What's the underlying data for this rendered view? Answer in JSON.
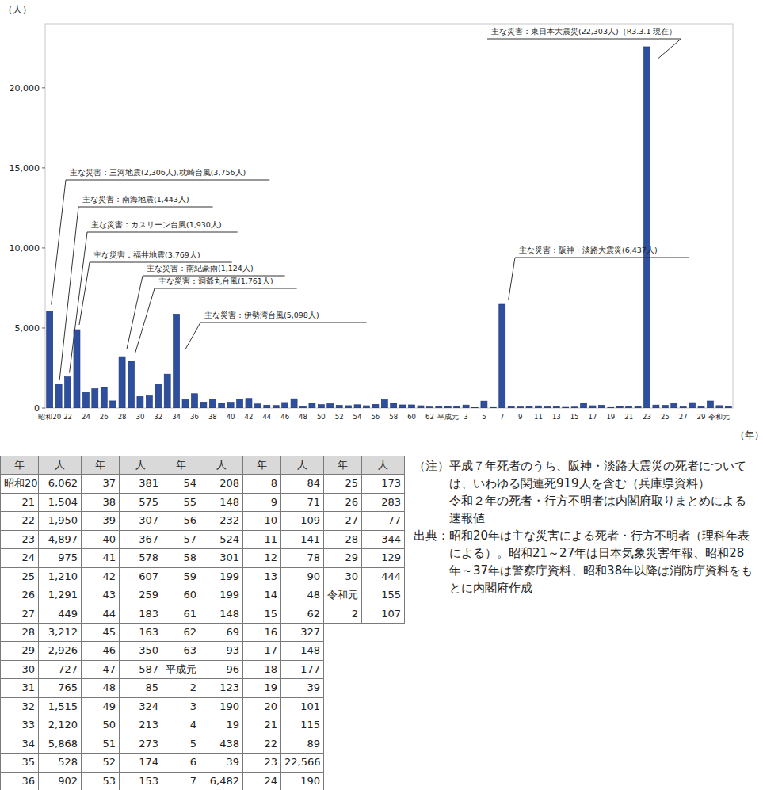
{
  "chart_data": {
    "type": "bar",
    "ylabel": "（人）",
    "xlabel": "（年）",
    "categories": [
      "昭和20",
      null,
      "22",
      null,
      "24",
      null,
      "26",
      null,
      "28",
      null,
      "30",
      null,
      "32",
      null,
      "34",
      null,
      "36",
      null,
      "38",
      null,
      "40",
      null,
      "42",
      null,
      "44",
      null,
      "46",
      null,
      "48",
      null,
      "50",
      null,
      "52",
      null,
      "54",
      null,
      "56",
      null,
      "58",
      null,
      "60",
      null,
      "62",
      null,
      "平成元",
      null,
      "3",
      null,
      "5",
      null,
      "7",
      null,
      "9",
      null,
      "11",
      null,
      "13",
      null,
      "15",
      null,
      "17",
      null,
      "19",
      null,
      "21",
      null,
      "23",
      null,
      "25",
      null,
      "27",
      null,
      "29",
      null,
      "令和元",
      null
    ],
    "values": [
      6062,
      1504,
      1950,
      4897,
      975,
      1210,
      1291,
      449,
      3212,
      2926,
      727,
      765,
      1515,
      2120,
      5868,
      528,
      902,
      381,
      575,
      307,
      367,
      578,
      607,
      259,
      183,
      163,
      350,
      587,
      85,
      324,
      213,
      273,
      174,
      153,
      208,
      148,
      232,
      524,
      301,
      199,
      199,
      148,
      69,
      93,
      96,
      123,
      190,
      19,
      438,
      39,
      6482,
      84,
      71,
      109,
      141,
      78,
      90,
      48,
      62,
      327,
      148,
      177,
      39,
      101,
      115,
      89,
      22566,
      190,
      173,
      283,
      77,
      344,
      129,
      444,
      155,
      107
    ],
    "color": "#2e4f9e",
    "ylim": [
      0,
      24000
    ],
    "yticks": [
      0,
      {
        "value": 5000,
        "label": "5,000"
      },
      {
        "value": 10000,
        "label": "10,000"
      },
      {
        "value": 15000,
        "label": "15,000"
      },
      {
        "value": 20000,
        "label": "20,000"
      }
    ],
    "grid": false,
    "annotations": [
      {
        "text": "主な災害：三河地震(2,306人),枕崎台風(3,756人)",
        "index": 0
      },
      {
        "text": "主な災害：南海地震(1,443人)",
        "index": 1
      },
      {
        "text": "主な災害：カスリーン台風(1,930人)",
        "index": 2
      },
      {
        "text": "主な災害：福井地震(3,769人)",
        "index": 3
      },
      {
        "text": "主な災害：南紀豪雨(1,124人)",
        "index": 8
      },
      {
        "text": "主な災害：洞爺丸台風(1,761人)",
        "index": 9
      },
      {
        "text": "主な災害：伊勢湾台風(5,098人)",
        "index": 14
      },
      {
        "text": "主な災害：阪神・淡路大震災(6,437人)",
        "index": 50
      },
      {
        "text": "主な災害：東日本大震災(22,303人)（R3.3.1 現在）",
        "index": 66
      }
    ]
  },
  "table": {
    "header": [
      "年",
      "人",
      "年",
      "人",
      "年",
      "人",
      "年",
      "人",
      "年",
      "人"
    ],
    "rows": [
      [
        "昭和20",
        "6,062",
        "37",
        "381",
        "54",
        "208",
        "8",
        "84",
        "25",
        "173"
      ],
      [
        "21",
        "1,504",
        "38",
        "575",
        "55",
        "148",
        "9",
        "71",
        "26",
        "283"
      ],
      [
        "22",
        "1,950",
        "39",
        "307",
        "56",
        "232",
        "10",
        "109",
        "27",
        "77"
      ],
      [
        "23",
        "4,897",
        "40",
        "367",
        "57",
        "524",
        "11",
        "141",
        "28",
        "344"
      ],
      [
        "24",
        "975",
        "41",
        "578",
        "58",
        "301",
        "12",
        "78",
        "29",
        "129"
      ],
      [
        "25",
        "1,210",
        "42",
        "607",
        "59",
        "199",
        "13",
        "90",
        "30",
        "444"
      ],
      [
        "26",
        "1,291",
        "43",
        "259",
        "60",
        "199",
        "14",
        "48",
        "令和元",
        "155"
      ],
      [
        "27",
        "449",
        "44",
        "183",
        "61",
        "148",
        "15",
        "62",
        "2",
        "107"
      ],
      [
        "28",
        "3,212",
        "45",
        "163",
        "62",
        "69",
        "16",
        "327"
      ],
      [
        "29",
        "2,926",
        "46",
        "350",
        "63",
        "93",
        "17",
        "148"
      ],
      [
        "30",
        "727",
        "47",
        "587",
        "平成元",
        "96",
        "18",
        "177"
      ],
      [
        "31",
        "765",
        "48",
        "85",
        "2",
        "123",
        "19",
        "39"
      ],
      [
        "32",
        "1,515",
        "49",
        "324",
        "3",
        "190",
        "20",
        "101"
      ],
      [
        "33",
        "2,120",
        "50",
        "213",
        "4",
        "19",
        "21",
        "115"
      ],
      [
        "34",
        "5,868",
        "51",
        "273",
        "5",
        "438",
        "22",
        "89"
      ],
      [
        "35",
        "528",
        "52",
        "174",
        "6",
        "39",
        "23",
        "22,566"
      ],
      [
        "36",
        "902",
        "53",
        "153",
        "7",
        "6,482",
        "24",
        "190"
      ]
    ]
  },
  "notes": [
    {
      "label": "（注）",
      "paragraphs": [
        "平成７年死者のうち、阪神・淡路大震災の死者については、いわゆる関連死919人を含む（兵庫県資料）",
        "令和２年の死者・行方不明者は内閣府取りまとめによる速報値"
      ]
    },
    {
      "label": "出典：",
      "paragraphs": [
        "昭和20年は主な災害による死者・行方不明者（理科年表による）。昭和21～27年は日本気象災害年報、昭和28年～37年は警察庁資料、昭和38年以降は消防庁資料をもとに内閣府作成"
      ]
    }
  ]
}
